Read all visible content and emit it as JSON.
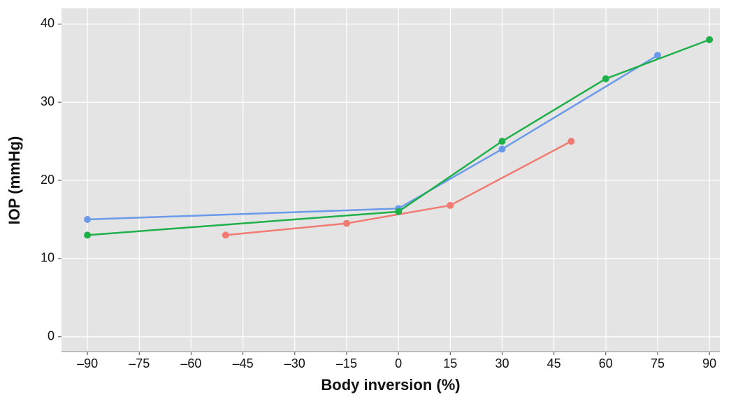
{
  "chart_data": {
    "type": "line",
    "xlabel": "Body inversion (%)",
    "ylabel": "IOP (mmHg)",
    "series": [
      {
        "color": "#f07b72",
        "x": [
          -50,
          -15,
          15,
          50
        ],
        "values": [
          13,
          14.5,
          16.8,
          25
        ]
      },
      {
        "color": "#6a9ae8",
        "x": [
          -90,
          0,
          30,
          75
        ],
        "values": [
          15,
          16.4,
          24,
          36
        ]
      },
      {
        "color": "#1fb04a",
        "x": [
          -90,
          0,
          30,
          60,
          90
        ],
        "values": [
          13,
          16,
          25,
          33,
          38
        ]
      }
    ],
    "xlim": [
      -97.5,
      93
    ],
    "ylim": [
      -1.9,
      42
    ],
    "xticks": [
      {
        "value": -90,
        "label": "–90"
      },
      {
        "value": -75,
        "label": "–75"
      },
      {
        "value": -60,
        "label": "–60"
      },
      {
        "value": -45,
        "label": "–45"
      },
      {
        "value": -30,
        "label": "–30"
      },
      {
        "value": -15,
        "label": "–15"
      },
      0,
      15,
      30,
      45,
      60,
      75,
      90
    ],
    "yticks": [
      0,
      10,
      20,
      30,
      40
    ],
    "grid": true
  }
}
